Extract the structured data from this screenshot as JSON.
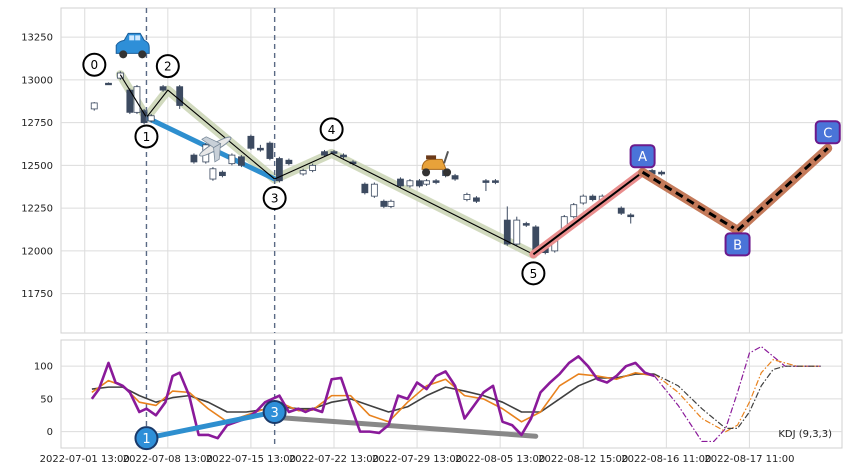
{
  "chart_data": [
    {
      "type": "candlestick",
      "panel": "price",
      "ylim": [
        11520,
        13420
      ],
      "yticks": [
        11750,
        12000,
        12250,
        12500,
        12750,
        13000,
        13250
      ],
      "grid": true,
      "candles": [
        {
          "x": 0.4,
          "o": 12830,
          "c": 12865,
          "h": 12870,
          "l": 12820,
          "up": true
        },
        {
          "x": 1.0,
          "o": 12980,
          "c": 12975,
          "h": 12985,
          "l": 12970,
          "up": false
        },
        {
          "x": 1.5,
          "o": 13010,
          "c": 13040,
          "h": 13050,
          "l": 13000,
          "up": true
        },
        {
          "x": 1.9,
          "o": 12940,
          "c": 12810,
          "h": 12950,
          "l": 12800,
          "up": false
        },
        {
          "x": 2.2,
          "o": 12810,
          "c": 12960,
          "h": 12970,
          "l": 12800,
          "up": true
        },
        {
          "x": 2.5,
          "o": 12820,
          "c": 12750,
          "h": 12830,
          "l": 12740,
          "up": false
        },
        {
          "x": 2.8,
          "o": 12760,
          "c": 12790,
          "h": 12800,
          "l": 12750,
          "up": true
        },
        {
          "x": 3.3,
          "o": 12940,
          "c": 12960,
          "h": 12970,
          "l": 12930,
          "up": false
        },
        {
          "x": 4.0,
          "o": 12960,
          "c": 12850,
          "h": 12970,
          "l": 12830,
          "up": false
        },
        {
          "x": 4.6,
          "o": 12560,
          "c": 12520,
          "h": 12570,
          "l": 12510,
          "up": false
        },
        {
          "x": 5.1,
          "o": 12520,
          "c": 12620,
          "h": 12630,
          "l": 12510,
          "up": true
        },
        {
          "x": 5.4,
          "o": 12420,
          "c": 12480,
          "h": 12490,
          "l": 12410,
          "up": true
        },
        {
          "x": 5.8,
          "o": 12460,
          "c": 12440,
          "h": 12470,
          "l": 12430,
          "up": false
        },
        {
          "x": 6.2,
          "o": 12510,
          "c": 12560,
          "h": 12570,
          "l": 12500,
          "up": true
        },
        {
          "x": 6.6,
          "o": 12550,
          "c": 12500,
          "h": 12560,
          "l": 12490,
          "up": false
        },
        {
          "x": 7.0,
          "o": 12670,
          "c": 12600,
          "h": 12680,
          "l": 12590,
          "up": false
        },
        {
          "x": 7.4,
          "o": 12600,
          "c": 12590,
          "h": 12620,
          "l": 12580,
          "up": false
        },
        {
          "x": 7.8,
          "o": 12630,
          "c": 12540,
          "h": 12640,
          "l": 12530,
          "up": false
        },
        {
          "x": 8.2,
          "o": 12540,
          "c": 12410,
          "h": 12550,
          "l": 12400,
          "up": false
        },
        {
          "x": 8.6,
          "o": 12510,
          "c": 12530,
          "h": 12540,
          "l": 12500,
          "up": false
        },
        {
          "x": 9.2,
          "o": 12450,
          "c": 12470,
          "h": 12480,
          "l": 12440,
          "up": true
        },
        {
          "x": 9.6,
          "o": 12470,
          "c": 12500,
          "h": 12510,
          "l": 12460,
          "up": true
        },
        {
          "x": 10.1,
          "o": 12560,
          "c": 12580,
          "h": 12590,
          "l": 12550,
          "up": false
        },
        {
          "x": 10.5,
          "o": 12580,
          "c": 12570,
          "h": 12590,
          "l": 12560,
          "up": false
        },
        {
          "x": 10.9,
          "o": 12560,
          "c": 12550,
          "h": 12570,
          "l": 12540,
          "up": false
        },
        {
          "x": 11.3,
          "o": 12520,
          "c": 12510,
          "h": 12530,
          "l": 12500,
          "up": false
        },
        {
          "x": 11.8,
          "o": 12390,
          "c": 12340,
          "h": 12400,
          "l": 12330,
          "up": false
        },
        {
          "x": 12.2,
          "o": 12320,
          "c": 12390,
          "h": 12400,
          "l": 12310,
          "up": true
        },
        {
          "x": 12.6,
          "o": 12290,
          "c": 12260,
          "h": 12300,
          "l": 12250,
          "up": false
        },
        {
          "x": 12.9,
          "o": 12260,
          "c": 12290,
          "h": 12300,
          "l": 12250,
          "up": true
        },
        {
          "x": 13.3,
          "o": 12420,
          "c": 12380,
          "h": 12430,
          "l": 12370,
          "up": false
        },
        {
          "x": 13.7,
          "o": 12380,
          "c": 12410,
          "h": 12420,
          "l": 12370,
          "up": true
        },
        {
          "x": 14.1,
          "o": 12410,
          "c": 12380,
          "h": 12420,
          "l": 12370,
          "up": false
        },
        {
          "x": 14.4,
          "o": 12390,
          "c": 12410,
          "h": 12420,
          "l": 12380,
          "up": true
        },
        {
          "x": 14.8,
          "o": 12410,
          "c": 12400,
          "h": 12420,
          "l": 12390,
          "up": false
        },
        {
          "x": 15.2,
          "o": 12470,
          "c": 12440,
          "h": 12480,
          "l": 12430,
          "up": false
        },
        {
          "x": 15.6,
          "o": 12440,
          "c": 12420,
          "h": 12450,
          "l": 12410,
          "up": false
        },
        {
          "x": 16.1,
          "o": 12300,
          "c": 12330,
          "h": 12340,
          "l": 12290,
          "up": true
        },
        {
          "x": 16.5,
          "o": 12310,
          "c": 12290,
          "h": 12320,
          "l": 12280,
          "up": false
        },
        {
          "x": 16.9,
          "o": 12410,
          "c": 12400,
          "h": 12420,
          "l": 12350,
          "up": false
        },
        {
          "x": 17.3,
          "o": 12400,
          "c": 12410,
          "h": 12420,
          "l": 12390,
          "up": false
        },
        {
          "x": 17.8,
          "o": 12180,
          "c": 12040,
          "h": 12260,
          "l": 12030,
          "up": false
        },
        {
          "x": 18.2,
          "o": 12040,
          "c": 12180,
          "h": 12200,
          "l": 12030,
          "up": true
        },
        {
          "x": 18.6,
          "o": 12160,
          "c": 12150,
          "h": 12170,
          "l": 12140,
          "up": false
        },
        {
          "x": 19.0,
          "o": 12140,
          "c": 12000,
          "h": 12150,
          "l": 11990,
          "up": false
        },
        {
          "x": 19.4,
          "o": 12030,
          "c": 11990,
          "h": 12040,
          "l": 11980,
          "up": false
        },
        {
          "x": 19.8,
          "o": 12000,
          "c": 12060,
          "h": 12070,
          "l": 11990,
          "up": true
        },
        {
          "x": 20.2,
          "o": 12110,
          "c": 12200,
          "h": 12210,
          "l": 12100,
          "up": true
        },
        {
          "x": 20.6,
          "o": 12200,
          "c": 12270,
          "h": 12280,
          "l": 12190,
          "up": true
        },
        {
          "x": 21.0,
          "o": 12280,
          "c": 12320,
          "h": 12330,
          "l": 12270,
          "up": true
        },
        {
          "x": 21.4,
          "o": 12300,
          "c": 12320,
          "h": 12330,
          "l": 12290,
          "up": false
        },
        {
          "x": 21.8,
          "o": 12280,
          "c": 12320,
          "h": 12330,
          "l": 12270,
          "up": true
        },
        {
          "x": 22.6,
          "o": 12250,
          "c": 12220,
          "h": 12260,
          "l": 12210,
          "up": false
        },
        {
          "x": 23.0,
          "o": 12210,
          "c": 12200,
          "h": 12220,
          "l": 12160,
          "up": false
        },
        {
          "x": 23.9,
          "o": 12470,
          "c": 12450,
          "h": 12480,
          "l": 12440,
          "up": false
        },
        {
          "x": 24.3,
          "o": 12460,
          "c": 12450,
          "h": 12470,
          "l": 12440,
          "up": false
        }
      ],
      "wave_points": [
        {
          "label": "0",
          "x": 1.5,
          "y": 13030
        },
        {
          "label": "1",
          "x": 2.6,
          "y": 12780
        },
        {
          "label": "2",
          "x": 3.5,
          "y": 12940
        },
        {
          "label": "3",
          "x": 8.0,
          "y": 12420
        },
        {
          "label": "4",
          "x": 10.4,
          "y": 12570
        },
        {
          "label": "5",
          "x": 18.9,
          "y": 11980
        }
      ],
      "projection_points": [
        {
          "label": "A",
          "x": 23.5,
          "y": 12460
        },
        {
          "label": "B",
          "x": 27.5,
          "y": 12120
        },
        {
          "label": "C",
          "x": 31.3,
          "y": 12600
        }
      ],
      "blue_line": [
        {
          "x": 2.6,
          "y": 12780
        },
        {
          "x": 8.0,
          "y": 12420
        }
      ],
      "markers": [
        {
          "icon": "car-icon",
          "x": 2.0,
          "y": 13190
        },
        {
          "icon": "airplane-icon",
          "x": 5.5,
          "y": 12610
        },
        {
          "icon": "scooter-icon",
          "x": 14.8,
          "y": 12500
        }
      ],
      "vlines": [
        2.6,
        8.0
      ],
      "colors": {
        "up": "#ffffff",
        "down": "#3c4a60",
        "wave": "#c9d4b3",
        "blue": "#2e8fcf",
        "proj_fill": "#4a74d8",
        "proj_border": "#6b1a8c"
      }
    },
    {
      "type": "line",
      "panel": "indicator",
      "label": "KDJ (9,3,3)",
      "ylim": [
        -25,
        140
      ],
      "yticks": [
        0,
        50,
        100
      ],
      "xticks": [
        {
          "x": 0,
          "label": "2022-07-01 13:00"
        },
        {
          "x": 3.5,
          "label": "2022-07-08 13:00"
        },
        {
          "x": 7.0,
          "label": "2022-07-15 13:00"
        },
        {
          "x": 10.5,
          "label": "2022-07-22 13:00"
        },
        {
          "x": 14.0,
          "label": "2022-07-29 13:00"
        },
        {
          "x": 17.5,
          "label": "2022-08-05 13:00"
        },
        {
          "x": 21.0,
          "label": "2022-08-12 15:00"
        },
        {
          "x": 24.5,
          "label": "2022-08-16 11:00"
        },
        {
          "x": 28.0,
          "label": "2022-08-17 11:00"
        }
      ],
      "series": [
        {
          "id": "J",
          "color": "#8a1a9a",
          "x": [
            0.3,
            0.6,
            1.0,
            1.3,
            1.6,
            1.9,
            2.3,
            2.6,
            3.0,
            3.4,
            3.7,
            4.0,
            4.4,
            4.8,
            5.2,
            5.6,
            6.0,
            6.4,
            6.8,
            7.2,
            7.6,
            7.9,
            8.2,
            8.6,
            9.0,
            9.3,
            9.6,
            10.0,
            10.4,
            10.8,
            11.2,
            11.6,
            12.0,
            12.4,
            12.8,
            13.2,
            13.6,
            14.0,
            14.4,
            14.8,
            15.2,
            15.6,
            16.0,
            16.4,
            16.8,
            17.2,
            17.6,
            18.0,
            18.4,
            18.8,
            19.2,
            19.6,
            20.0,
            20.4,
            20.8,
            21.2,
            21.6,
            22.0,
            22.4,
            22.8,
            23.2,
            23.6,
            24.0
          ],
          "y": [
            50,
            65,
            105,
            75,
            70,
            60,
            30,
            35,
            25,
            45,
            85,
            90,
            55,
            -5,
            -5,
            -10,
            10,
            15,
            20,
            30,
            45,
            50,
            55,
            30,
            35,
            30,
            35,
            30,
            80,
            82,
            40,
            0,
            0,
            -2,
            10,
            55,
            50,
            75,
            65,
            85,
            92,
            70,
            20,
            40,
            60,
            70,
            15,
            10,
            -5,
            20,
            60,
            75,
            88,
            105,
            115,
            100,
            80,
            75,
            85,
            100,
            105,
            90,
            85
          ]
        },
        {
          "id": "D",
          "color": "#e8821e",
          "x": [
            0.3,
            1.0,
            1.6,
            2.3,
            3.0,
            3.7,
            4.4,
            5.2,
            6.0,
            6.8,
            7.6,
            8.2,
            9.0,
            9.6,
            10.4,
            11.2,
            12.0,
            12.8,
            13.6,
            14.4,
            15.2,
            16.0,
            16.8,
            17.6,
            18.4,
            19.2,
            20.0,
            20.8,
            21.6,
            22.4,
            23.2,
            24.0
          ],
          "y": [
            60,
            78,
            70,
            45,
            40,
            62,
            60,
            35,
            15,
            25,
            35,
            45,
            32,
            33,
            55,
            55,
            25,
            15,
            45,
            70,
            80,
            55,
            50,
            35,
            15,
            30,
            70,
            88,
            85,
            80,
            90,
            85
          ]
        },
        {
          "id": "K",
          "color": "#404040",
          "x": [
            0.3,
            1.0,
            1.6,
            2.3,
            3.0,
            3.7,
            4.4,
            5.2,
            6.0,
            6.8,
            7.6,
            8.2,
            9.0,
            9.6,
            10.4,
            11.2,
            12.0,
            12.8,
            13.6,
            14.4,
            15.2,
            16.0,
            16.8,
            17.6,
            18.4,
            19.2,
            20.0,
            20.8,
            21.6,
            22.4,
            23.2,
            24.0
          ],
          "y": [
            65,
            68,
            68,
            55,
            45,
            52,
            55,
            45,
            30,
            30,
            34,
            38,
            35,
            35,
            45,
            50,
            40,
            30,
            38,
            55,
            68,
            62,
            55,
            45,
            30,
            30,
            50,
            70,
            82,
            82,
            88,
            88
          ]
        }
      ],
      "forecast": [
        {
          "color": "#8a1a9a",
          "x": [
            24.0,
            25.0,
            26.0,
            26.5,
            27.0,
            27.5,
            28.0,
            28.5,
            29.0,
            29.5,
            30.0,
            31.0
          ],
          "y": [
            85,
            40,
            -15,
            -15,
            5,
            60,
            120,
            130,
            115,
            100,
            100,
            100
          ]
        },
        {
          "color": "#e8821e",
          "x": [
            24.0,
            25.0,
            26.0,
            27.0,
            27.5,
            28.0,
            28.5,
            29.0,
            29.5,
            30.0,
            31.0
          ],
          "y": [
            88,
            60,
            20,
            0,
            10,
            45,
            90,
            110,
            105,
            100,
            100
          ]
        },
        {
          "color": "#404040",
          "x": [
            24.0,
            25.0,
            26.0,
            27.0,
            27.5,
            28.0,
            28.5,
            29.0,
            29.5,
            30.0,
            31.0
          ],
          "y": [
            88,
            70,
            35,
            5,
            5,
            30,
            70,
            95,
            100,
            100,
            100
          ]
        }
      ],
      "wave_points": [
        {
          "label": "1",
          "x": 2.6,
          "y": -10
        },
        {
          "label": "3",
          "x": 8.0,
          "y": 30
        }
      ],
      "blue_line": [
        {
          "x": 2.6,
          "y": -10
        },
        {
          "x": 8.0,
          "y": 30
        }
      ],
      "gray_line": [
        {
          "x": 8.0,
          "y": 22
        },
        {
          "x": 19.0,
          "y": -7
        }
      ],
      "vlines": [
        2.6,
        8.0
      ]
    }
  ]
}
